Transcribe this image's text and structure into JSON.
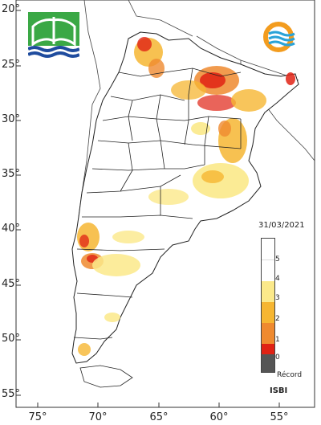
{
  "map": {
    "date": "31/03/2021",
    "index_name": "ISBI",
    "record_label": "Récord",
    "lat_ticks": [
      "20°",
      "25°",
      "30°",
      "35°",
      "40°",
      "45°",
      "50°",
      "55°"
    ],
    "lon_ticks": [
      "75°",
      "70°",
      "65°",
      "60°",
      "55°"
    ],
    "legend": {
      "values": [
        "5",
        "4",
        "3",
        "2",
        "1",
        "0"
      ],
      "colors": [
        "#ffffff",
        "#fbe98a",
        "#f6b632",
        "#ef8a2f",
        "#e02214",
        "#555555"
      ]
    }
  }
}
